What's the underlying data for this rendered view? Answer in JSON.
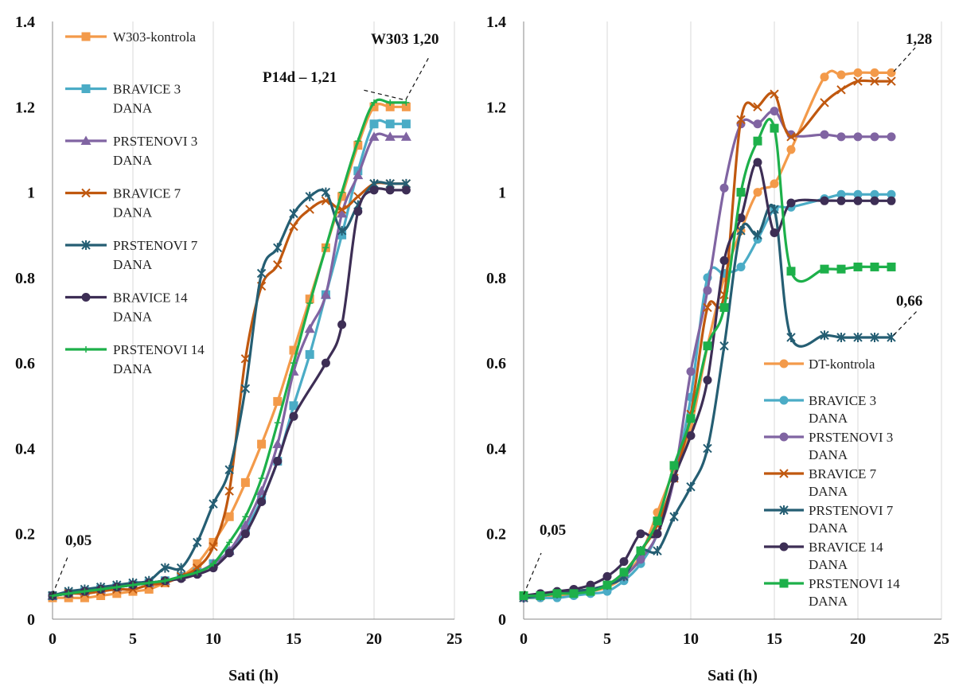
{
  "chart_data": [
    {
      "type": "line",
      "xlabel": "Sati (h)",
      "xlim": [
        0,
        25
      ],
      "ylim": [
        0,
        1.4
      ],
      "xticks": [
        "0",
        "5",
        "10",
        "15",
        "20",
        "25"
      ],
      "yticks": [
        "0",
        "0.2",
        "0.4",
        "0.6",
        "0.8",
        "1",
        "1.2",
        "1.4"
      ],
      "grid": "vertical",
      "legend_position": "left",
      "annotations": [
        {
          "text": "0,05",
          "x": 1,
          "y": 0.2
        },
        {
          "text": "P14d – 1,21",
          "x": 15.5,
          "y": 1.27
        },
        {
          "text": "W303 1,20",
          "x": 21,
          "y": 1.31
        }
      ],
      "series": [
        {
          "name": "W303-kontrola",
          "color": "#f39a4a",
          "marker": "square",
          "x": [
            0,
            1,
            2,
            3,
            4,
            5,
            6,
            7,
            8,
            9,
            10,
            11,
            12,
            13,
            14,
            15,
            16,
            17,
            18,
            19,
            20,
            21,
            22
          ],
          "y": [
            0.05,
            0.05,
            0.05,
            0.055,
            0.06,
            0.065,
            0.07,
            0.085,
            0.1,
            0.13,
            0.18,
            0.24,
            0.32,
            0.41,
            0.51,
            0.63,
            0.75,
            0.87,
            0.99,
            1.11,
            1.2,
            1.2,
            1.2
          ]
        },
        {
          "name": "BRAVICE 3 DANA",
          "color": "#4bacc6",
          "marker": "square",
          "x": [
            0,
            1,
            2,
            3,
            4,
            5,
            6,
            7,
            8,
            9,
            10,
            11,
            12,
            13,
            14,
            15,
            16,
            17,
            18,
            19,
            20,
            21,
            22
          ],
          "y": [
            0.055,
            0.06,
            0.065,
            0.07,
            0.075,
            0.08,
            0.085,
            0.09,
            0.1,
            0.11,
            0.13,
            0.16,
            0.21,
            0.28,
            0.37,
            0.5,
            0.62,
            0.76,
            0.9,
            1.05,
            1.16,
            1.16,
            1.16
          ]
        },
        {
          "name": "PRSTENOVI 3 DANA",
          "color": "#8064a2",
          "marker": "triangle",
          "x": [
            0,
            1,
            2,
            3,
            4,
            5,
            6,
            7,
            8,
            9,
            10,
            11,
            12,
            13,
            14,
            15,
            16,
            17,
            18,
            19,
            20,
            21,
            22
          ],
          "y": [
            0.055,
            0.06,
            0.065,
            0.07,
            0.075,
            0.08,
            0.085,
            0.09,
            0.1,
            0.11,
            0.13,
            0.16,
            0.22,
            0.3,
            0.41,
            0.58,
            0.68,
            0.76,
            0.95,
            1.04,
            1.13,
            1.13,
            1.13
          ]
        },
        {
          "name": "BRAVICE 7 DANA",
          "color": "#c0580f",
          "marker": "x",
          "x": [
            0,
            1,
            2,
            3,
            4,
            5,
            6,
            7,
            8,
            9,
            10,
            11,
            12,
            13,
            14,
            15,
            16,
            17,
            18,
            19,
            20,
            21,
            22
          ],
          "y": [
            0.055,
            0.06,
            0.06,
            0.065,
            0.07,
            0.07,
            0.08,
            0.085,
            0.1,
            0.12,
            0.17,
            0.3,
            0.61,
            0.78,
            0.83,
            0.92,
            0.96,
            0.98,
            0.96,
            0.99,
            1.02,
            1.02,
            1.02
          ]
        },
        {
          "name": "PRSTENOVI 7 DANA",
          "color": "#255e73",
          "marker": "star",
          "x": [
            0,
            1,
            2,
            3,
            4,
            5,
            6,
            7,
            8,
            9,
            10,
            11,
            12,
            13,
            14,
            15,
            16,
            17,
            18,
            19,
            20,
            21,
            22
          ],
          "y": [
            0.055,
            0.065,
            0.07,
            0.075,
            0.08,
            0.085,
            0.09,
            0.12,
            0.12,
            0.18,
            0.27,
            0.35,
            0.54,
            0.81,
            0.87,
            0.95,
            0.99,
            1.0,
            0.91,
            0.97,
            1.02,
            1.02,
            1.02
          ]
        },
        {
          "name": "BRAVICE 14 DANA",
          "color": "#3d2e55",
          "marker": "circle",
          "x": [
            0,
            1,
            2,
            3,
            4,
            5,
            6,
            7,
            8,
            9,
            10,
            11,
            12,
            13,
            14,
            15,
            17,
            18,
            19,
            20,
            21,
            22
          ],
          "y": [
            0.055,
            0.06,
            0.065,
            0.07,
            0.075,
            0.08,
            0.085,
            0.09,
            0.095,
            0.105,
            0.12,
            0.155,
            0.2,
            0.275,
            0.37,
            0.475,
            0.6,
            0.69,
            0.955,
            1.005,
            1.005,
            1.005
          ]
        },
        {
          "name": "PRSTENOVI 14 DANA",
          "color": "#1db04a",
          "marker": "plus",
          "x": [
            0,
            1,
            2,
            3,
            4,
            5,
            6,
            7,
            8,
            9,
            10,
            11,
            12,
            13,
            14,
            15,
            16,
            17,
            18,
            19,
            20,
            21,
            22
          ],
          "y": [
            0.055,
            0.06,
            0.065,
            0.07,
            0.075,
            0.08,
            0.085,
            0.09,
            0.1,
            0.11,
            0.13,
            0.18,
            0.24,
            0.33,
            0.46,
            0.6,
            0.74,
            0.87,
            1.0,
            1.12,
            1.21,
            1.21,
            1.21
          ]
        }
      ]
    },
    {
      "type": "line",
      "xlabel": "Sati (h)",
      "xlim": [
        0,
        25
      ],
      "ylim": [
        0,
        1.4
      ],
      "xticks": [
        "0",
        "5",
        "10",
        "15",
        "20",
        "25"
      ],
      "yticks": [
        "0",
        "0.2",
        "0.4",
        "0.6",
        "0.8",
        "1",
        "1.2",
        "1.4"
      ],
      "grid": "vertical",
      "legend_position": "bottom-right",
      "annotations": [
        {
          "text": "0,05",
          "x": 1,
          "y": 0.2
        },
        {
          "text": "1,28",
          "x": 23.2,
          "y": 1.38
        },
        {
          "text": "0,66",
          "x": 23.1,
          "y": 0.74
        }
      ],
      "series": [
        {
          "name": "DT-kontrola",
          "color": "#f39a4a",
          "marker": "circle",
          "x": [
            0,
            1,
            2,
            3,
            4,
            5,
            6,
            7,
            8,
            9,
            10,
            11,
            12,
            13,
            14,
            15,
            16,
            18,
            19,
            20,
            21,
            22
          ],
          "y": [
            0.05,
            0.05,
            0.055,
            0.06,
            0.065,
            0.075,
            0.1,
            0.15,
            0.25,
            0.35,
            0.45,
            0.64,
            0.8,
            0.91,
            1.0,
            1.02,
            1.1,
            1.27,
            1.275,
            1.28,
            1.28,
            1.28
          ]
        },
        {
          "name": "BRAVICE 3 DANA",
          "color": "#4bacc6",
          "marker": "circle",
          "x": [
            0,
            1,
            2,
            3,
            4,
            5,
            6,
            7,
            8,
            9,
            10,
            11,
            12,
            13,
            14,
            15,
            16,
            18,
            19,
            20,
            21,
            22
          ],
          "y": [
            0.05,
            0.05,
            0.05,
            0.055,
            0.06,
            0.065,
            0.09,
            0.13,
            0.2,
            0.33,
            0.52,
            0.8,
            0.81,
            0.825,
            0.89,
            0.96,
            0.965,
            0.985,
            0.995,
            0.995,
            0.995,
            0.995
          ]
        },
        {
          "name": "PRSTENOVI 3 DANA",
          "color": "#8064a2",
          "marker": "circle",
          "x": [
            0,
            1,
            2,
            3,
            4,
            5,
            6,
            7,
            8,
            9,
            10,
            11,
            12,
            13,
            14,
            15,
            16,
            18,
            19,
            20,
            21,
            22
          ],
          "y": [
            0.05,
            0.055,
            0.06,
            0.065,
            0.07,
            0.08,
            0.1,
            0.14,
            0.2,
            0.33,
            0.58,
            0.77,
            1.01,
            1.16,
            1.16,
            1.19,
            1.135,
            1.135,
            1.13,
            1.13,
            1.13,
            1.13
          ]
        },
        {
          "name": "BRAVICE 7 DANA",
          "color": "#c0580f",
          "marker": "x",
          "x": [
            0,
            1,
            2,
            3,
            4,
            5,
            6,
            7,
            8,
            9,
            10,
            11,
            12,
            13,
            14,
            15,
            16,
            18,
            19,
            20,
            21,
            22
          ],
          "y": [
            0.05,
            0.055,
            0.06,
            0.065,
            0.07,
            0.08,
            0.11,
            0.16,
            0.22,
            0.33,
            0.48,
            0.73,
            0.76,
            1.17,
            1.2,
            1.23,
            1.13,
            1.21,
            1.24,
            1.26,
            1.26,
            1.26
          ]
        },
        {
          "name": "PRSTENOVI 7 DANA",
          "color": "#255e73",
          "marker": "star",
          "x": [
            0,
            1,
            2,
            3,
            4,
            5,
            6,
            7,
            8,
            9,
            10,
            11,
            12,
            13,
            14,
            15,
            16,
            18,
            19,
            20,
            21,
            22
          ],
          "y": [
            0.05,
            0.055,
            0.06,
            0.065,
            0.07,
            0.08,
            0.1,
            0.16,
            0.16,
            0.24,
            0.31,
            0.4,
            0.64,
            0.91,
            0.9,
            0.96,
            0.66,
            0.665,
            0.66,
            0.66,
            0.66,
            0.66
          ]
        },
        {
          "name": "BRAVICE 14 DANA",
          "color": "#3d2e55",
          "marker": "circle",
          "x": [
            0,
            1,
            2,
            3,
            4,
            5,
            6,
            7,
            8,
            9,
            10,
            11,
            12,
            13,
            14,
            15,
            16,
            18,
            19,
            20,
            21,
            22
          ],
          "y": [
            0.055,
            0.06,
            0.065,
            0.07,
            0.08,
            0.1,
            0.135,
            0.2,
            0.2,
            0.33,
            0.43,
            0.56,
            0.84,
            0.94,
            1.07,
            0.905,
            0.975,
            0.98,
            0.98,
            0.98,
            0.98,
            0.98
          ]
        },
        {
          "name": "PRSTENOVI 14 DANA",
          "color": "#1db04a",
          "marker": "square",
          "x": [
            0,
            1,
            2,
            3,
            4,
            5,
            6,
            7,
            8,
            9,
            10,
            11,
            12,
            13,
            14,
            15,
            16,
            18,
            19,
            20,
            21,
            22
          ],
          "y": [
            0.055,
            0.055,
            0.06,
            0.06,
            0.065,
            0.08,
            0.11,
            0.16,
            0.23,
            0.36,
            0.47,
            0.64,
            0.73,
            1.0,
            1.12,
            1.15,
            0.815,
            0.82,
            0.82,
            0.825,
            0.825,
            0.825
          ]
        }
      ]
    }
  ]
}
